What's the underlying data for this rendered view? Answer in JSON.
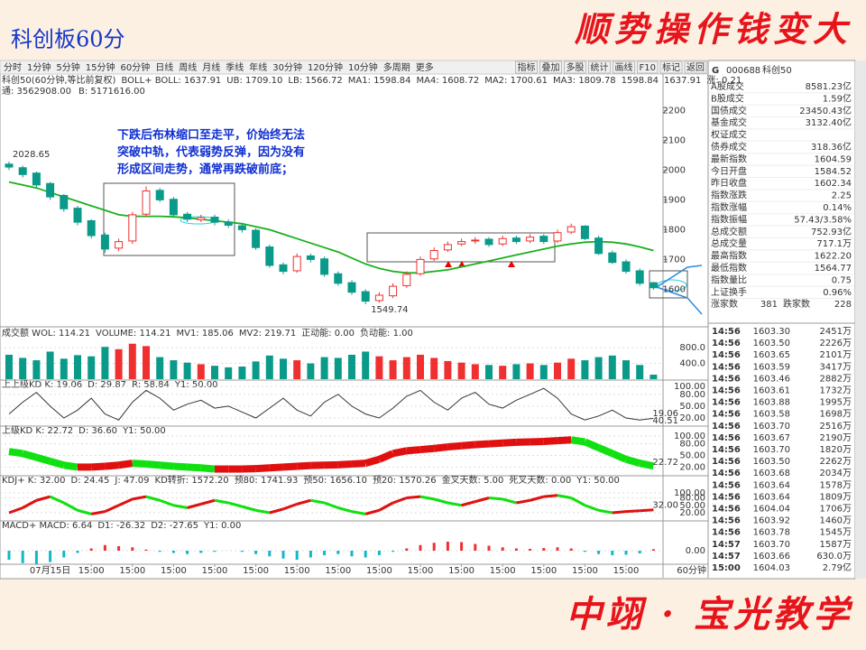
{
  "slide": {
    "title": "科创板60分",
    "slogan": "顺势操作钱变大",
    "footer": "中翊 · 宝光教学"
  },
  "toolbar": {
    "periods": [
      "分时",
      "1分钟",
      "5分钟",
      "15分钟",
      "60分钟",
      "日线",
      "周线",
      "月线",
      "季线",
      "年线",
      "30分钟",
      "120分钟",
      "10分钟",
      "多周期",
      "更多"
    ],
    "active_index": 4,
    "tools": [
      "指标",
      "叠加",
      "多股",
      "统计",
      "画线",
      "F10",
      "标记",
      "返回"
    ]
  },
  "chart_data": {
    "type": "candlestick",
    "header": [
      {
        "text": "科创50(60分钟,等比前复权)",
        "color": "#333"
      },
      {
        "text": "BOLL+ BOLL: 1637.91",
        "color": "#333"
      },
      {
        "text": "UB: 1709.10",
        "color": "#c0a"
      },
      {
        "text": "LB: 1566.72",
        "color": "#c0a"
      },
      {
        "text": "MA1: 1598.84",
        "color": "#000"
      },
      {
        "text": "MA4: 1608.72",
        "color": "#090"
      },
      {
        "text": "MA2: 1700.61",
        "color": "#999"
      },
      {
        "text": "MA3: 1809.78",
        "color": "#999"
      },
      {
        "text": "1598.84",
        "color": "#e00"
      },
      {
        "text": "1637.91",
        "color": "#00c"
      },
      {
        "text": "涨: 0.21",
        "color": "#333"
      }
    ],
    "subheader": [
      {
        "text": "通: 3562908.00",
        "color": "#00f"
      },
      {
        "text": "B: 5171616.00",
        "color": "#00f"
      }
    ],
    "annotation": [
      "下跌后布林缩口至走平，价始终无法",
      "突破中轨，代表弱势反弹，因为没有",
      "形成区间走势，通常再跌破前底；"
    ],
    "categories": [
      null,
      null,
      null,
      "07月15日",
      null,
      null,
      "15:00",
      null,
      null,
      "15:00",
      null,
      null,
      "15:00",
      null,
      null,
      "15:00",
      null,
      null,
      "15:00",
      null,
      null,
      "15:00",
      null,
      null,
      "15:00",
      null,
      null,
      "15:00",
      null,
      null,
      "15:00",
      null,
      null,
      "15:00",
      null,
      null,
      "15:00",
      null,
      null,
      "15:00",
      null,
      null,
      "15:00",
      null,
      null,
      "15:00",
      null,
      null
    ],
    "period_label": "60分钟",
    "open": [
      2020,
      2008,
      1990,
      1955,
      1915,
      1872,
      1830,
      1782,
      1738,
      1762,
      1852,
      1932,
      1902,
      1852,
      1833,
      1842,
      1826,
      1813,
      1798,
      1742,
      1682,
      1662,
      1712,
      1702,
      1652,
      1622,
      1592,
      1562,
      1578,
      1612,
      1652,
      1702,
      1732,
      1752,
      1762,
      1768,
      1752,
      1772,
      1762,
      1778,
      1762,
      1792,
      1812,
      1772,
      1722,
      1692,
      1662,
      1622
    ],
    "high": [
      2028.65,
      2015,
      1995,
      1960,
      1920,
      1880,
      1835,
      1790,
      1770,
      1860,
      1945,
      1940,
      1910,
      1860,
      1850,
      1850,
      1835,
      1820,
      1805,
      1750,
      1690,
      1720,
      1720,
      1710,
      1660,
      1630,
      1600,
      1590,
      1620,
      1660,
      1710,
      1740,
      1760,
      1770,
      1775,
      1775,
      1780,
      1780,
      1785,
      1785,
      1800,
      1820,
      1815,
      1780,
      1730,
      1700,
      1670,
      1625
    ],
    "low": [
      2000,
      1975,
      1940,
      1900,
      1860,
      1815,
      1770,
      1722,
      1728,
      1752,
      1842,
      1892,
      1842,
      1826,
      1826,
      1815,
      1806,
      1790,
      1732,
      1672,
      1650,
      1655,
      1690,
      1642,
      1612,
      1582,
      1549.74,
      1555,
      1570,
      1605,
      1645,
      1695,
      1725,
      1745,
      1752,
      1742,
      1745,
      1752,
      1755,
      1752,
      1755,
      1785,
      1765,
      1715,
      1685,
      1652,
      1612,
      1598
    ],
    "close": [
      2010,
      1985,
      1950,
      1910,
      1870,
      1825,
      1780,
      1735,
      1760,
      1850,
      1930,
      1900,
      1850,
      1835,
      1840,
      1825,
      1815,
      1800,
      1740,
      1680,
      1660,
      1710,
      1700,
      1650,
      1620,
      1590,
      1560,
      1580,
      1610,
      1650,
      1700,
      1730,
      1750,
      1760,
      1765,
      1750,
      1770,
      1760,
      1775,
      1760,
      1790,
      1810,
      1770,
      1720,
      1690,
      1660,
      1620,
      1605
    ],
    "ma": {
      "color": "#1bb01b",
      "values": [
        1960,
        1950,
        1940,
        1925,
        1910,
        1895,
        1880,
        1865,
        1850,
        1845,
        1845,
        1845,
        1843,
        1840,
        1835,
        1830,
        1825,
        1820,
        1810,
        1800,
        1785,
        1770,
        1755,
        1740,
        1725,
        1705,
        1685,
        1670,
        1660,
        1655,
        1655,
        1660,
        1665,
        1675,
        1685,
        1695,
        1705,
        1715,
        1725,
        1735,
        1745,
        1752,
        1758,
        1760,
        1758,
        1752,
        1742,
        1730
      ]
    },
    "up_color": "#f03030",
    "down_color": "#0a9a8a",
    "ylim": [
      1480,
      2280
    ],
    "yticks": [
      1600,
      1700,
      1800,
      1900,
      2000,
      2100,
      2200
    ],
    "volume": {
      "header": [
        {
          "text": "成交额 WOL: 114.21",
          "color": "#333"
        },
        {
          "text": "VOLUME: 114.21",
          "color": "#00f"
        },
        {
          "text": "MV1: 185.06",
          "color": "#c00"
        },
        {
          "text": "MV2: 219.71",
          "color": "#00a"
        },
        {
          "text": "正动能: 0.00",
          "color": "#e00"
        },
        {
          "text": "负动能: 1.00",
          "color": "#0a0"
        }
      ],
      "values": [
        620,
        540,
        480,
        700,
        520,
        610,
        580,
        820,
        760,
        900,
        840,
        560,
        480,
        420,
        380,
        340,
        300,
        320,
        450,
        600,
        520,
        480,
        400,
        560,
        540,
        620,
        700,
        580,
        480,
        560,
        620,
        540,
        460,
        420,
        380,
        360,
        340,
        380,
        400,
        360,
        420,
        520,
        480,
        560,
        600,
        480,
        360,
        114.21
      ],
      "ylim": [
        0,
        1100
      ],
      "yticks": [
        {
          "value": 400,
          "label": "400.0"
        },
        {
          "value": 800,
          "label": "800.0"
        }
      ]
    },
    "kd": {
      "header": [
        {
          "text": "上上级KD K: 19.06",
          "color": "#333"
        },
        {
          "text": "D: 29.87",
          "color": "#c0c"
        },
        {
          "text": "R: 58.84",
          "color": "#333"
        },
        {
          "text": "Y1: 50.00",
          "color": "#999"
        }
      ],
      "values": [
        30,
        60,
        85,
        50,
        20,
        40,
        70,
        30,
        15,
        60,
        90,
        70,
        40,
        55,
        65,
        45,
        50,
        35,
        20,
        45,
        70,
        40,
        25,
        60,
        80,
        50,
        30,
        20,
        45,
        75,
        90,
        60,
        40,
        70,
        85,
        55,
        45,
        65,
        80,
        95,
        70,
        30,
        15,
        25,
        40,
        20,
        15,
        19.06
      ],
      "side_labels": [
        "19.06",
        "40.51"
      ],
      "ylim": [
        0,
        100
      ],
      "yticks": [
        {
          "value": 20,
          "label": "20.00"
        },
        {
          "value": 50,
          "label": "50.00"
        },
        {
          "value": 80,
          "label": "80.00"
        },
        {
          "value": 100,
          "label": "100.00"
        }
      ]
    },
    "kd2": {
      "header": [
        {
          "text": "上级KD K: 22.72",
          "color": "#333"
        },
        {
          "text": "D: 36.60",
          "color": "#c0c"
        },
        {
          "text": "Y1: 50.00",
          "color": "#999"
        }
      ],
      "values": [
        60,
        55,
        45,
        35,
        25,
        20,
        20,
        22,
        25,
        30,
        28,
        25,
        22,
        20,
        18,
        15,
        15,
        15,
        16,
        18,
        20,
        22,
        24,
        25,
        26,
        28,
        30,
        40,
        55,
        62,
        65,
        68,
        72,
        75,
        78,
        80,
        82,
        84,
        85,
        86,
        88,
        90,
        85,
        70,
        55,
        40,
        30,
        22.72
      ],
      "side_labels": [
        "22.72"
      ],
      "ylim": [
        0,
        100
      ],
      "yticks": [
        {
          "value": 20,
          "label": "20.00"
        },
        {
          "value": 50,
          "label": "50.00"
        },
        {
          "value": 80,
          "label": "80.00"
        },
        {
          "value": 100,
          "label": "100.00"
        }
      ]
    },
    "kdj": {
      "header": [
        {
          "text": "KDJ+ K: 32.00",
          "color": "#333"
        },
        {
          "text": "D: 24.45",
          "color": "#00c"
        },
        {
          "text": "J: 47.09",
          "color": "#c0c"
        },
        {
          "text": "KD转折: 1572.20",
          "color": "#999"
        },
        {
          "text": "预80: 1741.93",
          "color": "#c00"
        },
        {
          "text": "预50: 1656.10",
          "color": "#999"
        },
        {
          "text": "预20: 1570.26",
          "color": "#c00"
        },
        {
          "text": "金叉天数: 5.00",
          "color": "#c00"
        },
        {
          "text": "死叉天数: 0.00",
          "color": "#0a0"
        },
        {
          "text": "Y1: 50.00",
          "color": "#999"
        }
      ],
      "values": [
        20,
        40,
        70,
        85,
        60,
        30,
        15,
        25,
        50,
        75,
        85,
        70,
        50,
        40,
        55,
        70,
        60,
        45,
        30,
        20,
        35,
        55,
        70,
        60,
        40,
        25,
        15,
        30,
        60,
        80,
        85,
        75,
        60,
        50,
        65,
        80,
        75,
        60,
        70,
        85,
        90,
        80,
        50,
        30,
        20,
        25,
        28,
        32
      ],
      "side_labels": [
        "32.00"
      ],
      "ylim": [
        0,
        100
      ],
      "yticks": [
        {
          "value": 20,
          "label": "20.00"
        },
        {
          "value": 50,
          "label": "50.00"
        },
        {
          "value": 80,
          "label": "80.00"
        },
        {
          "value": 100,
          "label": "100.00"
        }
      ]
    },
    "macd": {
      "header": [
        {
          "text": "MACD+ MACD: 6.64",
          "color": "#333"
        },
        {
          "text": "D1: -26.32",
          "color": "#c00"
        },
        {
          "text": "D2: -27.65",
          "color": "#00c"
        },
        {
          "text": "Y1: 0.00",
          "color": "#999"
        }
      ],
      "values": [
        -40,
        -55,
        -60,
        -50,
        -30,
        -10,
        10,
        25,
        20,
        15,
        5,
        -5,
        -10,
        -15,
        -10,
        -5,
        0,
        -5,
        -15,
        -25,
        -35,
        -40,
        -30,
        -20,
        -15,
        -25,
        -30,
        -20,
        -5,
        10,
        25,
        35,
        40,
        38,
        30,
        22,
        15,
        10,
        8,
        12,
        15,
        10,
        -5,
        -15,
        -20,
        -18,
        -12,
        6.64
      ],
      "ylim": [
        -60,
        100
      ],
      "yticks": [
        {
          "value": 0,
          "label": "0.00"
        }
      ]
    }
  },
  "quote_panel": {
    "prefix": "G",
    "code": "000688",
    "name": "科创50",
    "rows": [
      {
        "label": "A股成交",
        "value": "8581.23亿",
        "color": "#000"
      },
      {
        "label": "B股成交",
        "value": "1.59亿",
        "color": "#000"
      },
      {
        "label": "国债成交",
        "value": "23450.43亿",
        "color": "#000"
      },
      {
        "label": "基金成交",
        "value": "3132.40亿",
        "color": "#000"
      },
      {
        "label": "权证成交",
        "value": null,
        "color": "#000"
      },
      {
        "label": "债券成交",
        "value": "318.36亿",
        "color": "#000"
      },
      {
        "label": "最新指数",
        "value": "1604.59",
        "color": "#e00"
      },
      {
        "label": "今日开盘",
        "value": "1584.52",
        "color": "#e00"
      },
      {
        "label": "昨日收盘",
        "value": "1602.34",
        "color": "#000"
      },
      {
        "label": "指数涨跌",
        "value": "2.25",
        "color": "#e00"
      },
      {
        "label": "指数涨幅",
        "value": "0.14%",
        "color": "#e00"
      },
      {
        "label": "指数振幅",
        "value": "57.43/3.58%",
        "color": "#000"
      },
      {
        "label": "总成交额",
        "value": "752.93亿",
        "color": "#000"
      },
      {
        "label": "总成交量",
        "value": "717.1万",
        "color": "#000"
      },
      {
        "label": "最高指数",
        "value": "1622.20",
        "color": "#e00"
      },
      {
        "label": "最低指数",
        "value": "1564.77",
        "color": "#e00"
      },
      {
        "label": "指数量比",
        "value": "0.75",
        "color": "#000"
      },
      {
        "label": "上证换手",
        "value": "0.96%",
        "color": "#000"
      }
    ],
    "breadth": {
      "up_label": "涨家数",
      "up": "381",
      "down_label": "跌家数",
      "down": "228"
    },
    "ticks": [
      [
        "14:56",
        "1603.30",
        "2451万"
      ],
      [
        "14:56",
        "1603.50",
        "2226万"
      ],
      [
        "14:56",
        "1603.65",
        "2101万"
      ],
      [
        "14:56",
        "1603.59",
        "3417万"
      ],
      [
        "14:56",
        "1603.46",
        "2882万"
      ],
      [
        "14:56",
        "1603.61",
        "1732万"
      ],
      [
        "14:56",
        "1603.88",
        "1995万"
      ],
      [
        "14:56",
        "1603.58",
        "1698万"
      ],
      [
        "14:56",
        "1603.70",
        "2516万"
      ],
      [
        "14:56",
        "1603.67",
        "2190万"
      ],
      [
        "14:56",
        "1603.70",
        "1820万"
      ],
      [
        "14:56",
        "1603.50",
        "2262万"
      ],
      [
        "14:56",
        "1603.68",
        "2034万"
      ],
      [
        "14:56",
        "1603.64",
        "1578万"
      ],
      [
        "14:56",
        "1603.64",
        "1809万"
      ],
      [
        "14:56",
        "1604.04",
        "1706万"
      ],
      [
        "14:56",
        "1603.92",
        "1460万"
      ],
      [
        "14:56",
        "1603.78",
        "1545万"
      ],
      [
        "14:57",
        "1603.70",
        "1587万"
      ],
      [
        "14:57",
        "1603.66",
        "630.0万"
      ],
      [
        "15:00",
        "1604.03",
        "2.79亿"
      ]
    ],
    "price_color": "#e00"
  }
}
